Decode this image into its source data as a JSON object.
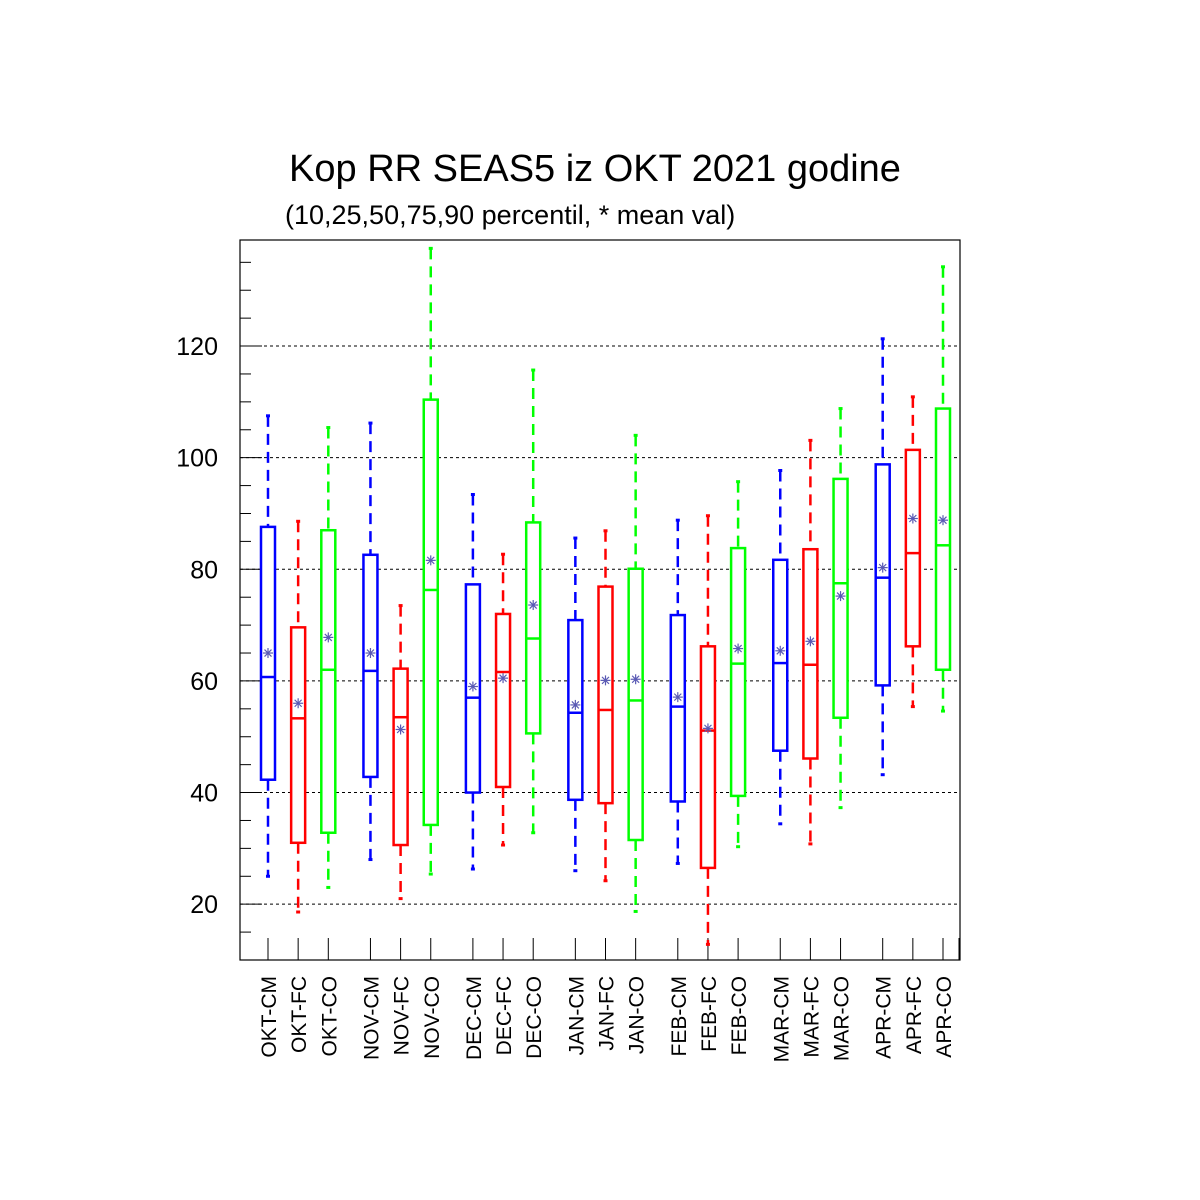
{
  "chart_data": {
    "type": "boxplot",
    "title": "Kop RR SEAS5 iz OKT 2021 godine",
    "subtitle": "(10,25,50,75,90 percentil, * mean val)",
    "ylim": [
      10,
      139
    ],
    "yticks": [
      20,
      40,
      60,
      80,
      100,
      120
    ],
    "grid": "horizontal dashed at major ticks",
    "series_colors": {
      "CM": "#0000ff",
      "FC": "#ff0000",
      "CO": "#00ff00"
    },
    "mean_marker_color": "#5a5ab4",
    "boxes": [
      {
        "label": "OKT-CM",
        "p10": 25,
        "p25": 42.3,
        "p50": 60.7,
        "p75": 87.6,
        "p90": 107.5,
        "mean": 65
      },
      {
        "label": "OKT-FC",
        "p10": 18.6,
        "p25": 31,
        "p50": 53.3,
        "p75": 69.6,
        "p90": 88.6,
        "mean": 56
      },
      {
        "label": "OKT-CO",
        "p10": 23,
        "p25": 32.8,
        "p50": 62,
        "p75": 87,
        "p90": 105.4,
        "mean": 67.8
      },
      {
        "label": "NOV-CM",
        "p10": 28,
        "p25": 42.8,
        "p50": 61.8,
        "p75": 82.6,
        "p90": 106.2,
        "mean": 65
      },
      {
        "label": "NOV-FC",
        "p10": 21,
        "p25": 30.6,
        "p50": 53.5,
        "p75": 62.2,
        "p90": 73.5,
        "mean": 51.3
      },
      {
        "label": "NOV-CO",
        "p10": 25.4,
        "p25": 34.2,
        "p50": 76.3,
        "p75": 110.4,
        "p90": 137.5,
        "mean": 81.6
      },
      {
        "label": "DEC-CM",
        "p10": 26.3,
        "p25": 40,
        "p50": 57,
        "p75": 77.3,
        "p90": 93.4,
        "mean": 59
      },
      {
        "label": "DEC-FC",
        "p10": 30.6,
        "p25": 41,
        "p50": 61.6,
        "p75": 72,
        "p90": 82.7,
        "mean": 60.5
      },
      {
        "label": "DEC-CO",
        "p10": 32.8,
        "p25": 50.6,
        "p50": 67.6,
        "p75": 88.4,
        "p90": 115.7,
        "mean": 73.6
      },
      {
        "label": "JAN-CM",
        "p10": 26,
        "p25": 38.7,
        "p50": 54.3,
        "p75": 70.9,
        "p90": 85.6,
        "mean": 55.7
      },
      {
        "label": "JAN-FC",
        "p10": 24.2,
        "p25": 38.1,
        "p50": 54.8,
        "p75": 76.9,
        "p90": 86.9,
        "mean": 60.1
      },
      {
        "label": "JAN-CO",
        "p10": 18.7,
        "p25": 31.5,
        "p50": 56.5,
        "p75": 80.1,
        "p90": 104,
        "mean": 60.3
      },
      {
        "label": "FEB-CM",
        "p10": 27.3,
        "p25": 38.4,
        "p50": 55.4,
        "p75": 71.8,
        "p90": 88.8,
        "mean": 57.1
      },
      {
        "label": "FEB-FC",
        "p10": 12.8,
        "p25": 26.5,
        "p50": 51.1,
        "p75": 66.2,
        "p90": 89.6,
        "mean": 51.5
      },
      {
        "label": "FEB-CO",
        "p10": 30.3,
        "p25": 39.4,
        "p50": 63.1,
        "p75": 83.8,
        "p90": 95.7,
        "mean": 65.8
      },
      {
        "label": "MAR-CM",
        "p10": 34.4,
        "p25": 47.5,
        "p50": 63.2,
        "p75": 81.7,
        "p90": 97.7,
        "mean": 65.4
      },
      {
        "label": "MAR-FC",
        "p10": 30.8,
        "p25": 46.1,
        "p50": 62.9,
        "p75": 83.6,
        "p90": 103.1,
        "mean": 67.1
      },
      {
        "label": "MAR-CO",
        "p10": 37.3,
        "p25": 53.4,
        "p50": 77.5,
        "p75": 96.2,
        "p90": 108.8,
        "mean": 75.2
      },
      {
        "label": "APR-CM",
        "p10": 43.2,
        "p25": 59.2,
        "p50": 78.5,
        "p75": 98.8,
        "p90": 121.3,
        "mean": 80.3
      },
      {
        "label": "APR-FC",
        "p10": 55.4,
        "p25": 66.2,
        "p50": 82.9,
        "p75": 101.4,
        "p90": 110.9,
        "mean": 89.1
      },
      {
        "label": "APR-CO",
        "p10": 54.6,
        "p25": 62,
        "p50": 84.3,
        "p75": 108.8,
        "p90": 134.2,
        "mean": 88.8
      }
    ]
  }
}
